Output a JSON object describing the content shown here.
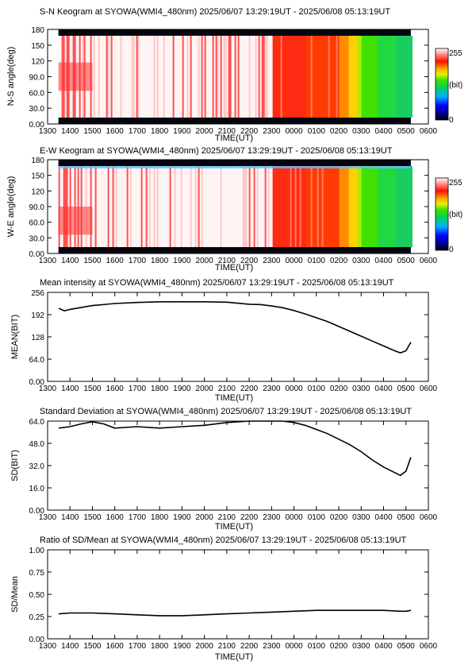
{
  "x_axis": {
    "label": "TIME(UT)",
    "ticks": [
      "1300",
      "1400",
      "1500",
      "1600",
      "1700",
      "1800",
      "1900",
      "2000",
      "2100",
      "2200",
      "2300",
      "0000",
      "0100",
      "0200",
      "0300",
      "0400",
      "0500",
      "0600"
    ]
  },
  "colorbar": {
    "max_label": "255",
    "unit_label": "(bit)",
    "min_label": "0"
  },
  "chart_data": [
    {
      "type": "heatmap",
      "title": "S-N Keogram at SYOWA(WMI4_480nm)    2025/06/07 13:29:19UT - 2025/06/08 05:13:19UT",
      "xlabel": "TIME(UT)",
      "ylabel": "N-S angle(deg)",
      "ylim": [
        0,
        180
      ],
      "yticks": [
        "180",
        "150",
        "120",
        "90.0",
        "60.0",
        "30.0",
        "0.00"
      ],
      "color_scale": {
        "min": 0,
        "max": 255,
        "unit": "(bit)"
      },
      "data_x_range": [
        "1329",
        "0513"
      ],
      "regimes": [
        {
          "from": "1329",
          "to": "2300",
          "appearance": "white/pink with red streaks, red near 60-90 deg before 1500"
        },
        {
          "from": "2300",
          "to": "0200",
          "appearance": "red"
        },
        {
          "from": "0200",
          "to": "0300",
          "appearance": "orange/yellow"
        },
        {
          "from": "0300",
          "to": "0513",
          "appearance": "green"
        }
      ]
    },
    {
      "type": "heatmap",
      "title": "E-W Keogram at SYOWA(WMI4_480nm)    2025/06/07 13:29:19UT - 2025/06/08 05:13:19UT",
      "xlabel": "TIME(UT)",
      "ylabel": "W-E angle(deg)",
      "ylim": [
        0,
        180
      ],
      "yticks": [
        "180",
        "150",
        "120",
        "90.0",
        "60.0",
        "30.0",
        "0.00"
      ],
      "color_scale": {
        "min": 0,
        "max": 255,
        "unit": "(bit)"
      },
      "data_x_range": [
        "1329",
        "0513"
      ],
      "regimes": [
        {
          "from": "1329",
          "to": "2300",
          "appearance": "white/pink with red streaks, red at low angles before 1500"
        },
        {
          "from": "2300",
          "to": "0200",
          "appearance": "red, bright band near 0-30 deg"
        },
        {
          "from": "0200",
          "to": "0300",
          "appearance": "orange/yellow"
        },
        {
          "from": "0300",
          "to": "0513",
          "appearance": "green, blue near 180 deg"
        }
      ]
    },
    {
      "type": "line",
      "title": "Mean intensity at SYOWA(WMI4_480nm)    2025/06/07 13:29:19UT - 2025/06/08 05:13:19UT",
      "xlabel": "TIME(UT)",
      "ylabel": "MEAN(BIT)",
      "ylim": [
        0,
        256
      ],
      "yticks": [
        "256",
        "192",
        "128",
        "64.0",
        "0.00"
      ],
      "x": [
        "1330",
        "1345",
        "1400",
        "1500",
        "1600",
        "1700",
        "1800",
        "1900",
        "2000",
        "2100",
        "2200",
        "2230",
        "2300",
        "2330",
        "0000",
        "0030",
        "0100",
        "0130",
        "0200",
        "0230",
        "0300",
        "0330",
        "0400",
        "0430",
        "0445",
        "0500",
        "0513"
      ],
      "values": [
        210,
        203,
        207,
        218,
        224,
        227,
        229,
        229,
        229,
        228,
        222,
        221,
        217,
        212,
        204,
        194,
        183,
        172,
        158,
        144,
        130,
        116,
        102,
        88,
        82,
        88,
        113
      ]
    },
    {
      "type": "line",
      "title": "Standard Deviation at SYOWA(WMI4_480nm)    2025/06/07 13:29:19UT - 2025/06/08 05:13:19UT",
      "xlabel": "TIME(UT)",
      "ylabel": "SD(BIT)",
      "ylim": [
        0,
        64
      ],
      "yticks": [
        "64.0",
        "48.0",
        "32.0",
        "16.0",
        "0.00"
      ],
      "x": [
        "1330",
        "1400",
        "1430",
        "1500",
        "1530",
        "1600",
        "1700",
        "1800",
        "1900",
        "2000",
        "2100",
        "2200",
        "2300",
        "2330",
        "0000",
        "0030",
        "0100",
        "0130",
        "0200",
        "0230",
        "0300",
        "0330",
        "0400",
        "0430",
        "0445",
        "0500",
        "0513"
      ],
      "values": [
        59,
        60,
        62,
        63.5,
        62,
        59,
        60,
        59,
        60,
        61,
        63,
        64,
        64,
        64,
        63,
        61,
        58,
        55,
        51,
        47,
        42,
        36,
        31,
        27,
        25,
        28,
        38
      ]
    },
    {
      "type": "line",
      "title": "Ratio of SD/Mean at SYOWA(WMI4_480nm)    2025/06/07 13:29:19UT - 2025/06/08 05:13:19UT",
      "xlabel": "TIME(UT)",
      "ylabel": "SD/Mean",
      "ylim": [
        0,
        1.0
      ],
      "yticks": [
        "1.00",
        "0.75",
        "0.50",
        "0.25",
        "0.00"
      ],
      "x": [
        "1330",
        "1400",
        "1500",
        "1600",
        "1700",
        "1800",
        "1900",
        "2000",
        "2100",
        "2200",
        "2300",
        "0000",
        "0100",
        "0200",
        "0300",
        "0400",
        "0445",
        "0500",
        "0513"
      ],
      "values": [
        0.28,
        0.29,
        0.29,
        0.28,
        0.27,
        0.26,
        0.26,
        0.27,
        0.28,
        0.29,
        0.3,
        0.31,
        0.32,
        0.32,
        0.32,
        0.32,
        0.31,
        0.31,
        0.32
      ]
    }
  ]
}
